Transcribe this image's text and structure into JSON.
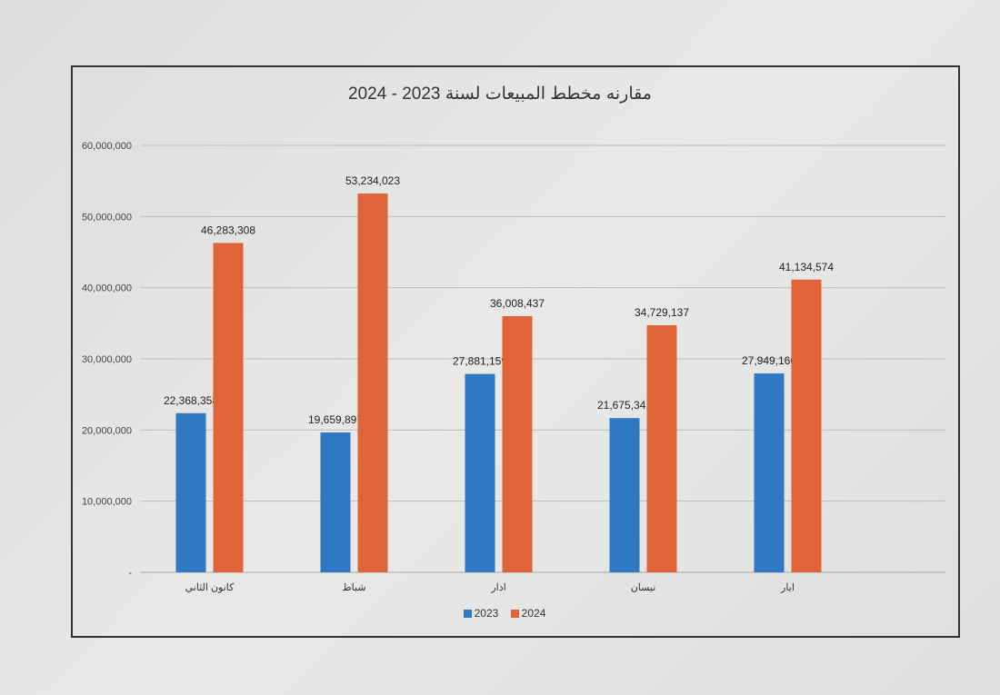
{
  "chart_data": {
    "type": "bar",
    "title": "مقارنه مخطط المبيعات لسنة 2023 - 2024",
    "categories": [
      "كانون الثاني",
      "شباط",
      "اذار",
      "نيسان",
      "ايار"
    ],
    "series": [
      {
        "name": "2023",
        "color": "#2e78c4",
        "values": [
          22368358,
          19659897,
          27881159,
          21675341,
          27949160
        ],
        "labels": [
          "22,368,358",
          "19,659,897",
          "27,881,159",
          "21,675,341",
          "27,949,160"
        ]
      },
      {
        "name": "2024",
        "color": "#e0643a",
        "values": [
          46283308,
          53234023,
          36008437,
          34729137,
          41134574
        ],
        "labels": [
          "46,283,308",
          "53,234,023",
          "36,008,437",
          "34,729,137",
          "41,134,574"
        ]
      }
    ],
    "ylim": [
      0,
      60000000
    ],
    "yticks": [
      0,
      10000000,
      20000000,
      30000000,
      40000000,
      50000000,
      60000000
    ],
    "ytick_labels": [
      "-",
      "10,000,000",
      "20,000,000",
      "30,000,000",
      "40,000,000",
      "50,000,000",
      "60,000,000"
    ],
    "xlabel": "",
    "ylabel": "",
    "grid": true,
    "legend": "bottom"
  }
}
